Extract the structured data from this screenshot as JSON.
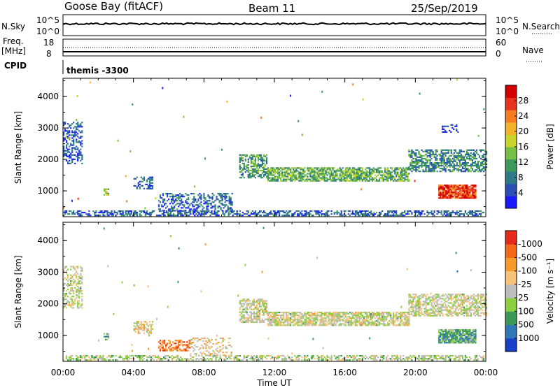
{
  "header": {
    "station": "Goose Bay (fitACF)",
    "beam": "Beam 11",
    "date": "25/Sep/2019"
  },
  "noise_panel": {
    "left_label": "N.Sky",
    "right_label": "N.Search",
    "left_ticks": [
      "10^5",
      "10^0"
    ],
    "right_ticks": [
      "10^5",
      "10^0"
    ]
  },
  "freq_panel": {
    "left_label_1": "Freq.",
    "left_label_2": "[MHz]",
    "left_ticks": [
      "18",
      "8"
    ],
    "right_label": "Nave",
    "right_ticks": [
      "60",
      "0"
    ]
  },
  "cpid": {
    "label": "CPID",
    "value": "themis -3300"
  },
  "chart_data": [
    {
      "type": "heatmap",
      "parameter": "Power",
      "ylabel": "Slant Range [km]",
      "xlabel": "Time UT",
      "x_ticks": [
        "00:00",
        "04:00",
        "08:00",
        "12:00",
        "16:00",
        "20:00",
        "00:00"
      ],
      "y_ticks": [
        1000,
        2000,
        3000,
        4000
      ],
      "ylim": [
        180,
        4580
      ],
      "xlim_hours": [
        0,
        24
      ],
      "colorbar": {
        "label": "Power [dB]",
        "ticks": [
          "4",
          "8",
          "12",
          "16",
          "20",
          "24",
          "28"
        ],
        "colors": [
          "#1a1aff",
          "#2b4fb5",
          "#2f7a8a",
          "#3c9a5a",
          "#76c043",
          "#c9d42a",
          "#f4b12a",
          "#f57d1f",
          "#e8341c",
          "#d40000"
        ]
      },
      "regions": [
        {
          "t0": 0.0,
          "t1": 23.9,
          "r0": 200,
          "r1": 350,
          "level": 0.2,
          "density": 0.55
        },
        {
          "t0": 0.0,
          "t1": 1.1,
          "r0": 1850,
          "r1": 3200,
          "level": 0.15,
          "density": 0.45
        },
        {
          "t0": 2.3,
          "t1": 2.6,
          "r0": 850,
          "r1": 1050,
          "level": 0.5,
          "density": 0.5
        },
        {
          "t0": 4.0,
          "t1": 5.1,
          "r0": 1050,
          "r1": 1450,
          "level": 0.2,
          "density": 0.5
        },
        {
          "t0": 5.4,
          "t1": 9.6,
          "r0": 350,
          "r1": 900,
          "level": 0.2,
          "density": 0.4
        },
        {
          "t0": 10.0,
          "t1": 11.6,
          "r0": 1400,
          "r1": 2150,
          "level": 0.35,
          "density": 0.6
        },
        {
          "t0": 11.6,
          "t1": 19.6,
          "r0": 1300,
          "r1": 1750,
          "level": 0.4,
          "density": 0.75
        },
        {
          "t0": 19.6,
          "t1": 24.0,
          "r0": 1600,
          "r1": 2300,
          "level": 0.3,
          "density": 0.6
        },
        {
          "t0": 21.3,
          "t1": 23.4,
          "r0": 750,
          "r1": 1200,
          "level": 0.85,
          "density": 0.9
        },
        {
          "t0": 21.5,
          "t1": 22.4,
          "r0": 2850,
          "r1": 3100,
          "level": 0.1,
          "density": 0.35
        }
      ]
    },
    {
      "type": "heatmap",
      "parameter": "Velocity",
      "ylabel": "Slant Range [km]",
      "xlabel": "Time UT",
      "x_ticks": [
        "00:00",
        "04:00",
        "08:00",
        "12:00",
        "16:00",
        "20:00",
        "00:00"
      ],
      "y_ticks": [
        1000,
        2000,
        3000,
        4000
      ],
      "ylim": [
        180,
        4580
      ],
      "xlim_hours": [
        0,
        24
      ],
      "colorbar": {
        "label": "Velocity [m s⁻¹]",
        "ticks": [
          "1000",
          "500",
          "100",
          "25",
          "-25",
          "-100",
          "-500",
          "-1000"
        ],
        "colors": [
          "#1a3fc8",
          "#2f78b8",
          "#3a9a55",
          "#8cd040",
          "#bdbdbd",
          "#f7c27a",
          "#f79a2a",
          "#f56a1a",
          "#e82a1a"
        ]
      },
      "regions": [
        {
          "t0": 0.0,
          "t1": 23.9,
          "r0": 200,
          "r1": 350,
          "level": 0.45,
          "density": 0.5
        },
        {
          "t0": 0.0,
          "t1": 1.1,
          "r0": 1850,
          "r1": 3200,
          "level": 0.5,
          "density": 0.45
        },
        {
          "t0": 2.3,
          "t1": 2.6,
          "r0": 850,
          "r1": 1050,
          "level": 0.3,
          "density": 0.5
        },
        {
          "t0": 4.0,
          "t1": 5.1,
          "r0": 1050,
          "r1": 1450,
          "level": 0.55,
          "density": 0.5
        },
        {
          "t0": 5.4,
          "t1": 7.2,
          "r0": 500,
          "r1": 850,
          "level": 0.8,
          "density": 0.55
        },
        {
          "t0": 7.2,
          "t1": 9.6,
          "r0": 350,
          "r1": 900,
          "level": 0.6,
          "density": 0.3
        },
        {
          "t0": 10.0,
          "t1": 11.6,
          "r0": 1400,
          "r1": 2150,
          "level": 0.5,
          "density": 0.6
        },
        {
          "t0": 11.6,
          "t1": 19.6,
          "r0": 1300,
          "r1": 1750,
          "level": 0.5,
          "density": 0.75
        },
        {
          "t0": 19.6,
          "t1": 24.0,
          "r0": 1600,
          "r1": 2300,
          "level": 0.5,
          "density": 0.6
        },
        {
          "t0": 21.3,
          "t1": 23.4,
          "r0": 750,
          "r1": 1200,
          "level": 0.3,
          "density": 0.9
        }
      ]
    }
  ]
}
